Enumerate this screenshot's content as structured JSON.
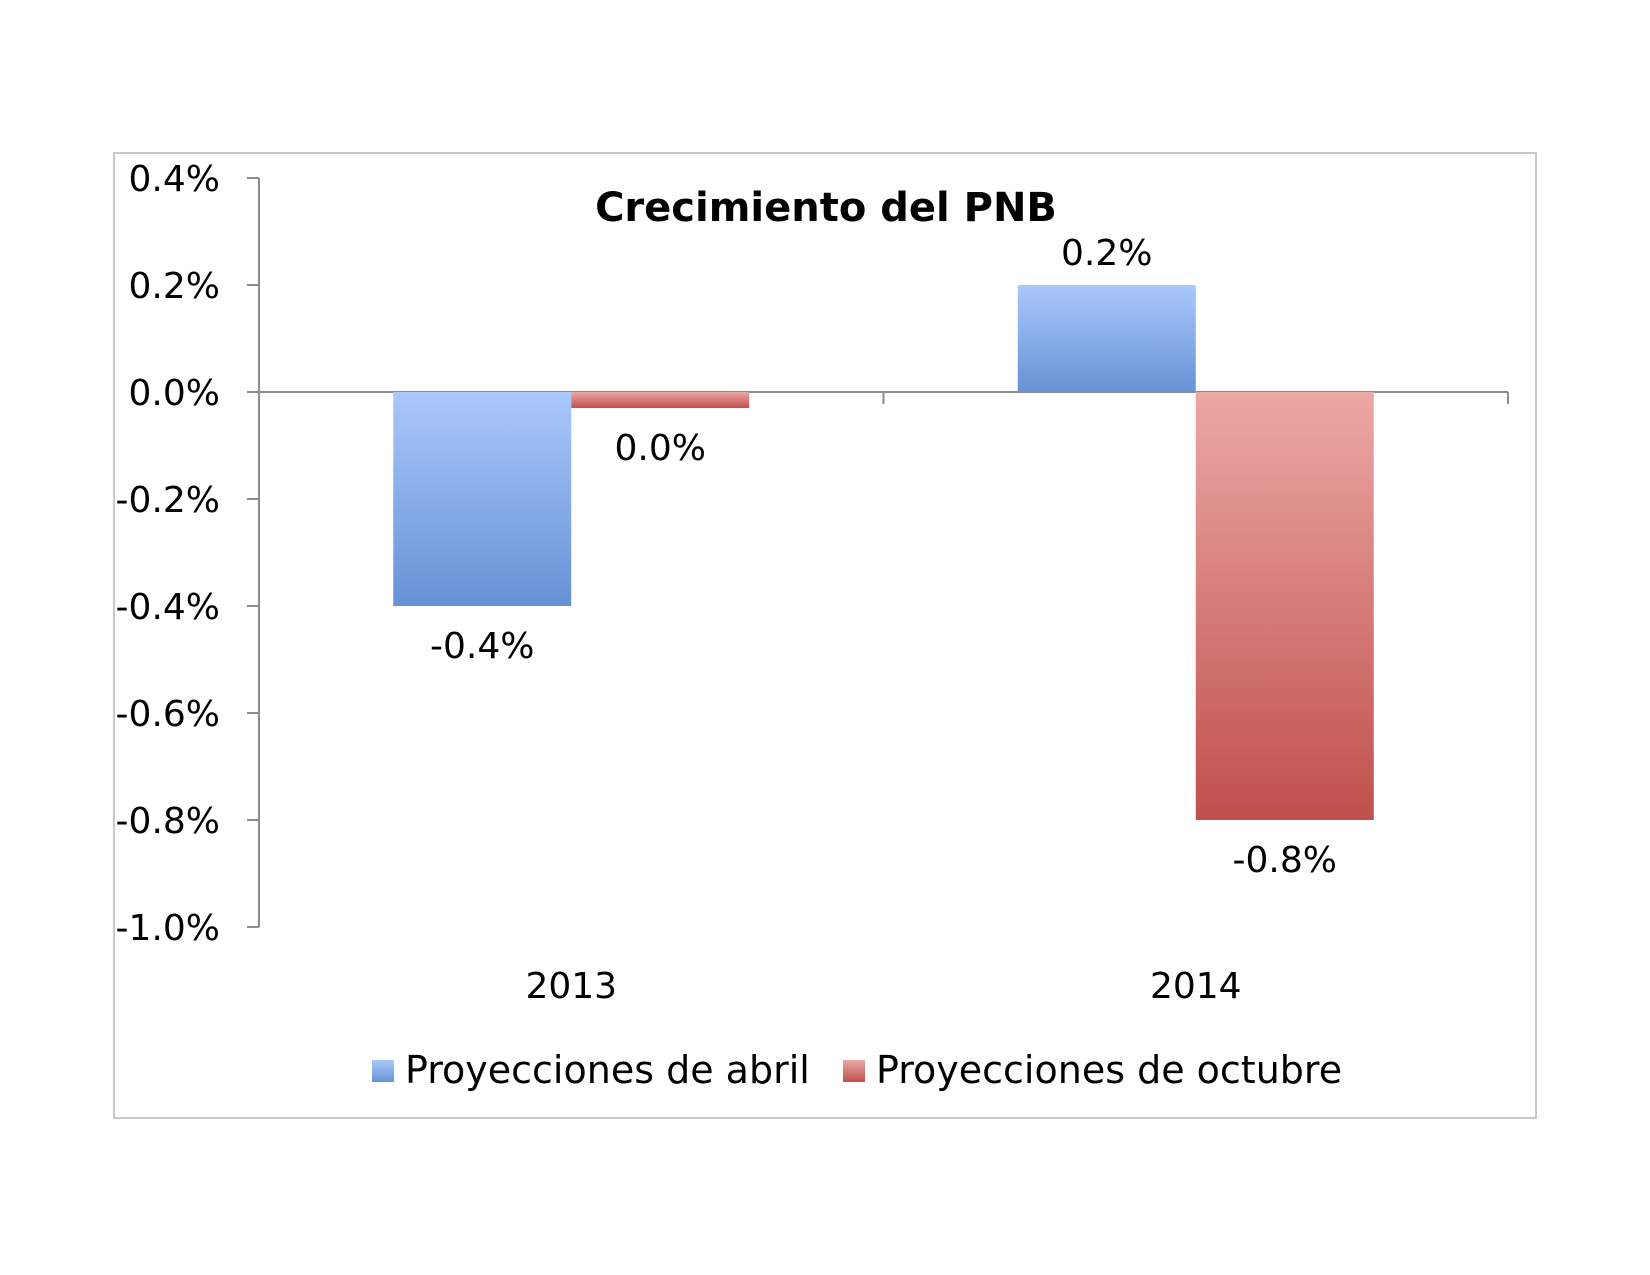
{
  "chart_data": {
    "type": "bar",
    "title": "Crecimiento del PNB",
    "categories": [
      "2013",
      "2014"
    ],
    "series": [
      {
        "name": "Proyecciones de abril",
        "values": [
          -0.4,
          0.2
        ],
        "labels": [
          "-0.4%",
          "0.2%"
        ],
        "color_top": "#aac8fb",
        "color_bottom": "#6792d6"
      },
      {
        "name": "Proyecciones de octubre",
        "values": [
          -0.03,
          -0.8
        ],
        "labels": [
          "0.0%",
          "-0.8%"
        ],
        "color_top": "#eba8a5",
        "color_bottom": "#c0504d"
      }
    ],
    "ylim": [
      -1.0,
      0.4
    ],
    "yticks": [
      0.4,
      0.2,
      0.0,
      -0.2,
      -0.4,
      -0.6,
      -0.8,
      -1.0
    ],
    "ytick_labels": [
      "0.4%",
      "0.2%",
      "0.0%",
      "-0.2%",
      "-0.4%",
      "-0.6%",
      "-0.8%",
      "-1.0%"
    ],
    "grid": false,
    "legend_position": "bottom"
  }
}
